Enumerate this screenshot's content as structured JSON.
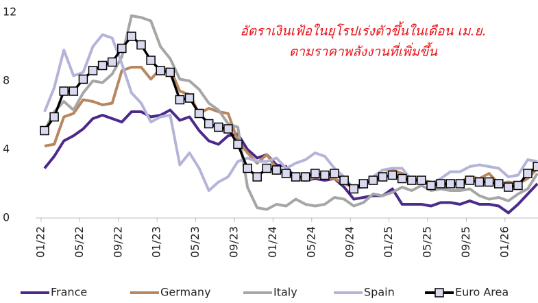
{
  "chart_data": {
    "type": "line",
    "title": [
      "อัตราเงินเฟ้อในยุโรปเร่งตัวขึ้นในเดือน เม.ย.",
      "ตามราคาพลังงานที่เพิ่มขึ้น"
    ],
    "categories": [
      "01/22",
      null,
      null,
      null,
      "05/22",
      null,
      null,
      null,
      "09/22",
      null,
      null,
      null,
      "01/23",
      null,
      null,
      null,
      "05/23",
      null,
      null,
      null,
      "09/23",
      null,
      null,
      null,
      "01/24",
      null,
      null,
      null,
      "05/24",
      null,
      null,
      null,
      "09/24",
      null,
      null,
      null,
      "01/25",
      null,
      null,
      null,
      "05/25",
      null,
      null,
      null,
      "09/25",
      null,
      null,
      null,
      "01/26",
      null,
      null,
      null
    ],
    "ylim": [
      0,
      12
    ],
    "yticks": [
      0,
      4,
      8,
      12
    ],
    "grid": false,
    "legend": "bottom",
    "series": [
      {
        "name": "France",
        "color": "#4b2a8c",
        "values": [
          2.9,
          3.6,
          4.5,
          4.8,
          5.2,
          5.8,
          6.0,
          5.8,
          5.6,
          6.2,
          6.2,
          5.9,
          6.0,
          6.3,
          5.7,
          5.9,
          5.1,
          4.5,
          4.3,
          4.8,
          4.9,
          4.0,
          3.5,
          3.7,
          3.1,
          3.0,
          2.3,
          2.2,
          2.3,
          2.2,
          2.3,
          1.8,
          1.1,
          1.2,
          1.3,
          1.3,
          1.7,
          0.8,
          0.8,
          0.8,
          0.7,
          0.9,
          0.9,
          0.8,
          1.0,
          0.8,
          0.8,
          0.7,
          0.3,
          0.8,
          1.4,
          2.0
        ]
      },
      {
        "name": "Germany",
        "color": "#b8865f",
        "values": [
          4.2,
          4.3,
          5.9,
          6.1,
          6.9,
          6.8,
          6.6,
          6.7,
          8.6,
          8.8,
          8.8,
          8.1,
          8.7,
          8.7,
          7.4,
          7.2,
          6.1,
          6.4,
          6.2,
          6.1,
          4.5,
          3.8,
          3.2,
          3.7,
          2.9,
          2.7,
          2.3,
          2.2,
          2.4,
          2.3,
          2.3,
          2.0,
          1.8,
          2.0,
          2.4,
          2.8,
          2.8,
          2.6,
          2.3,
          2.2,
          2.1,
          2.0,
          1.8,
          2.1,
          2.4,
          2.3,
          2.6,
          2.0,
          2.1,
          2.0,
          2.3,
          2.9
        ]
      },
      {
        "name": "Italy",
        "color": "#a6a6a6",
        "values": [
          5.1,
          6.2,
          6.8,
          6.3,
          7.3,
          8.0,
          7.9,
          8.4,
          9.4,
          11.8,
          11.7,
          11.5,
          10.0,
          9.3,
          8.1,
          8.0,
          7.5,
          6.7,
          6.3,
          5.5,
          5.3,
          1.8,
          0.6,
          0.5,
          0.8,
          0.7,
          1.1,
          0.8,
          0.7,
          0.8,
          1.2,
          1.1,
          0.7,
          0.9,
          1.4,
          1.3,
          1.5,
          1.8,
          1.6,
          1.9,
          1.6,
          1.7,
          1.6,
          1.6,
          1.7,
          1.3,
          1.1,
          1.2,
          1.0,
          1.4,
          1.7,
          2.6
        ]
      },
      {
        "name": "Spain",
        "color": "#b4b4d8",
        "values": [
          6.2,
          7.6,
          9.8,
          8.3,
          8.5,
          10.0,
          10.7,
          10.5,
          9.0,
          7.3,
          6.7,
          5.6,
          5.9,
          6.0,
          3.1,
          3.8,
          2.9,
          1.6,
          2.1,
          2.4,
          3.3,
          3.5,
          3.3,
          3.3,
          3.5,
          2.9,
          3.2,
          3.4,
          3.8,
          3.6,
          2.9,
          2.4,
          1.7,
          1.8,
          2.4,
          2.8,
          2.9,
          2.9,
          2.2,
          2.2,
          2.0,
          2.3,
          2.7,
          2.7,
          3.0,
          3.1,
          3.0,
          2.9,
          2.4,
          2.5,
          3.4,
          3.3
        ]
      },
      {
        "name": "Euro Area",
        "color": "#000000",
        "marker": "square",
        "marker_fill": "#d9d9f0",
        "values": [
          5.1,
          5.9,
          7.4,
          7.4,
          8.1,
          8.6,
          8.9,
          9.1,
          9.9,
          10.6,
          10.1,
          9.2,
          8.6,
          8.5,
          6.9,
          7.0,
          6.1,
          5.5,
          5.3,
          5.2,
          4.3,
          2.9,
          2.4,
          2.9,
          2.8,
          2.6,
          2.4,
          2.4,
          2.6,
          2.5,
          2.6,
          2.2,
          1.7,
          2.0,
          2.2,
          2.4,
          2.5,
          2.3,
          2.2,
          2.2,
          1.9,
          2.0,
          2.0,
          2.0,
          2.2,
          2.1,
          2.1,
          2.0,
          1.8,
          1.9,
          2.6,
          3.0
        ]
      }
    ]
  }
}
